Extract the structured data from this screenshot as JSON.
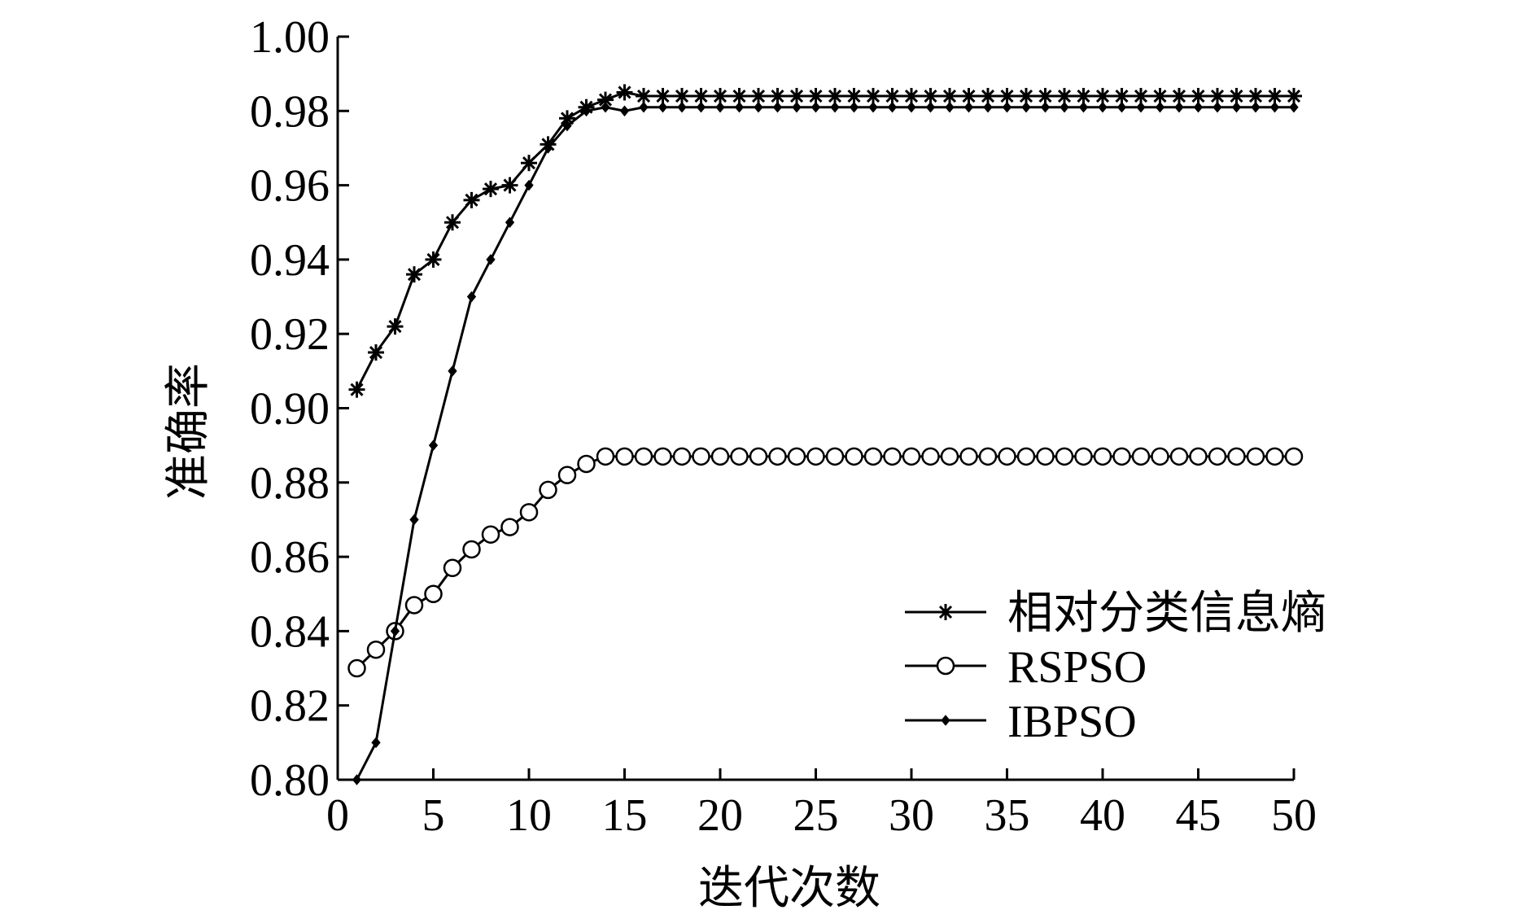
{
  "chart_data": {
    "type": "line",
    "xlabel": "迭代次数",
    "ylabel": "准确率",
    "xlim": [
      0,
      50
    ],
    "ylim": [
      0.8,
      1.0
    ],
    "xticks": [
      "0",
      "5",
      "10",
      "15",
      "20",
      "25",
      "30",
      "35",
      "40",
      "45",
      "50"
    ],
    "yticks": [
      "0.80",
      "0.82",
      "0.84",
      "0.86",
      "0.88",
      "0.90",
      "0.92",
      "0.94",
      "0.96",
      "0.98",
      "1.00"
    ],
    "legend_position": "lower-right",
    "grid": false,
    "series": [
      {
        "name": "相对分类信息熵",
        "marker": "asterisk",
        "x": [
          1,
          2,
          3,
          4,
          5,
          6,
          7,
          8,
          9,
          10,
          11,
          12,
          13,
          14,
          15,
          16,
          17,
          18,
          19,
          20,
          21,
          22,
          23,
          24,
          25,
          26,
          27,
          28,
          29,
          30,
          31,
          32,
          33,
          34,
          35,
          36,
          37,
          38,
          39,
          40,
          41,
          42,
          43,
          44,
          45,
          46,
          47,
          48,
          49,
          50
        ],
        "y": [
          0.905,
          0.915,
          0.922,
          0.936,
          0.94,
          0.95,
          0.956,
          0.959,
          0.96,
          0.966,
          0.971,
          0.978,
          0.981,
          0.983,
          0.985,
          0.984,
          0.984,
          0.984,
          0.984,
          0.984,
          0.984,
          0.984,
          0.984,
          0.984,
          0.984,
          0.984,
          0.984,
          0.984,
          0.984,
          0.984,
          0.984,
          0.984,
          0.984,
          0.984,
          0.984,
          0.984,
          0.984,
          0.984,
          0.984,
          0.984,
          0.984,
          0.984,
          0.984,
          0.984,
          0.984,
          0.984,
          0.984,
          0.984,
          0.984,
          0.984
        ]
      },
      {
        "name": "RSPSO",
        "marker": "circle",
        "x": [
          1,
          2,
          3,
          4,
          5,
          6,
          7,
          8,
          9,
          10,
          11,
          12,
          13,
          14,
          15,
          16,
          17,
          18,
          19,
          20,
          21,
          22,
          23,
          24,
          25,
          26,
          27,
          28,
          29,
          30,
          31,
          32,
          33,
          34,
          35,
          36,
          37,
          38,
          39,
          40,
          41,
          42,
          43,
          44,
          45,
          46,
          47,
          48,
          49,
          50
        ],
        "y": [
          0.83,
          0.835,
          0.84,
          0.847,
          0.85,
          0.857,
          0.862,
          0.866,
          0.868,
          0.872,
          0.878,
          0.882,
          0.885,
          0.887,
          0.887,
          0.887,
          0.887,
          0.887,
          0.887,
          0.887,
          0.887,
          0.887,
          0.887,
          0.887,
          0.887,
          0.887,
          0.887,
          0.887,
          0.887,
          0.887,
          0.887,
          0.887,
          0.887,
          0.887,
          0.887,
          0.887,
          0.887,
          0.887,
          0.887,
          0.887,
          0.887,
          0.887,
          0.887,
          0.887,
          0.887,
          0.887,
          0.887,
          0.887,
          0.887,
          0.887
        ]
      },
      {
        "name": "IBPSO",
        "marker": "dot",
        "x": [
          1,
          2,
          3,
          4,
          5,
          6,
          7,
          8,
          9,
          10,
          11,
          12,
          13,
          14,
          15,
          16,
          17,
          18,
          19,
          20,
          21,
          22,
          23,
          24,
          25,
          26,
          27,
          28,
          29,
          30,
          31,
          32,
          33,
          34,
          35,
          36,
          37,
          38,
          39,
          40,
          41,
          42,
          43,
          44,
          45,
          46,
          47,
          48,
          49,
          50
        ],
        "y": [
          0.8,
          0.81,
          0.84,
          0.87,
          0.89,
          0.91,
          0.93,
          0.94,
          0.95,
          0.96,
          0.97,
          0.976,
          0.98,
          0.981,
          0.98,
          0.981,
          0.981,
          0.981,
          0.981,
          0.981,
          0.981,
          0.981,
          0.981,
          0.981,
          0.981,
          0.981,
          0.981,
          0.981,
          0.981,
          0.981,
          0.981,
          0.981,
          0.981,
          0.981,
          0.981,
          0.981,
          0.981,
          0.981,
          0.981,
          0.981,
          0.981,
          0.981,
          0.981,
          0.981,
          0.981,
          0.981,
          0.981,
          0.981,
          0.981,
          0.981
        ]
      }
    ]
  }
}
